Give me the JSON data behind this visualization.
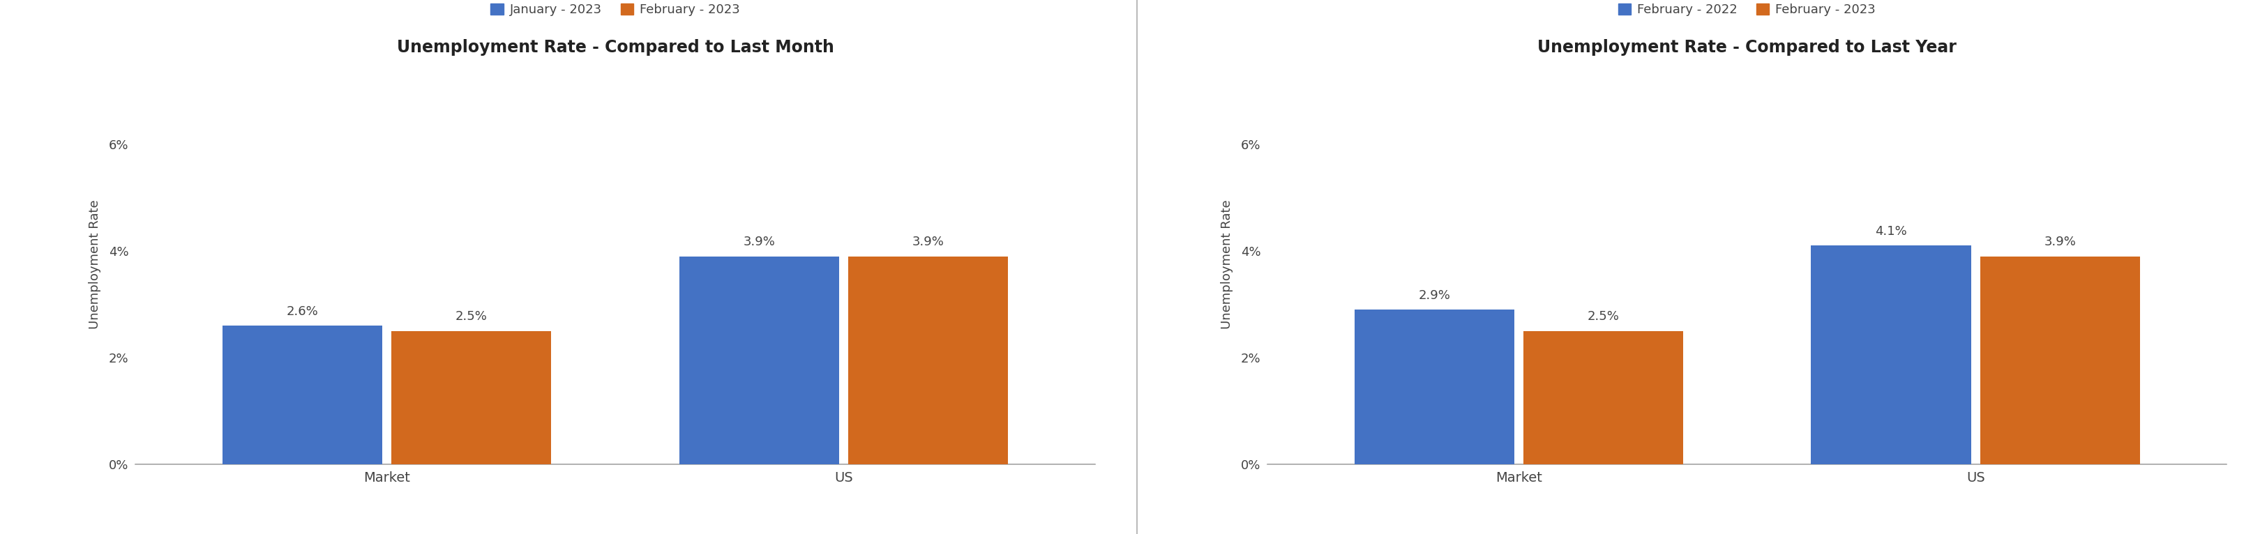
{
  "chart1": {
    "title": "Unemployment Rate - Compared to Last Month",
    "legend_labels": [
      "January - 2023",
      "February - 2023"
    ],
    "categories": [
      "Market",
      "US"
    ],
    "series1_values": [
      2.6,
      3.9
    ],
    "series2_values": [
      2.5,
      3.9
    ],
    "bar_color1": "#4472C4",
    "bar_color2": "#D2691E",
    "ylabel": "Unemployment Rate",
    "ylim": [
      0,
      0.075
    ],
    "yticks": [
      0,
      0.02,
      0.04,
      0.06
    ],
    "yticklabels": [
      "0%",
      "2%",
      "4%",
      "6%"
    ],
    "annotations1": [
      "2.6%",
      "3.9%"
    ],
    "annotations2": [
      "2.5%",
      "3.9%"
    ]
  },
  "chart2": {
    "title": "Unemployment Rate - Compared to Last Year",
    "legend_labels": [
      "February - 2022",
      "February - 2023"
    ],
    "categories": [
      "Market",
      "US"
    ],
    "series1_values": [
      2.9,
      4.1
    ],
    "series2_values": [
      2.5,
      3.9
    ],
    "bar_color1": "#4472C4",
    "bar_color2": "#D2691E",
    "ylabel": "Unemployment Rate",
    "ylim": [
      0,
      0.075
    ],
    "yticks": [
      0,
      0.02,
      0.04,
      0.06
    ],
    "yticklabels": [
      "0%",
      "2%",
      "4%",
      "6%"
    ],
    "annotations1": [
      "2.9%",
      "4.1%"
    ],
    "annotations2": [
      "2.5%",
      "3.9%"
    ]
  },
  "divider_color": "#bbbbbb",
  "background_color": "#ffffff",
  "title_fontsize": 17,
  "label_fontsize": 13,
  "tick_fontsize": 13,
  "annotation_fontsize": 13,
  "legend_fontsize": 13,
  "bar_width": 0.35,
  "text_color": "#444444",
  "axis_color": "#aaaaaa"
}
